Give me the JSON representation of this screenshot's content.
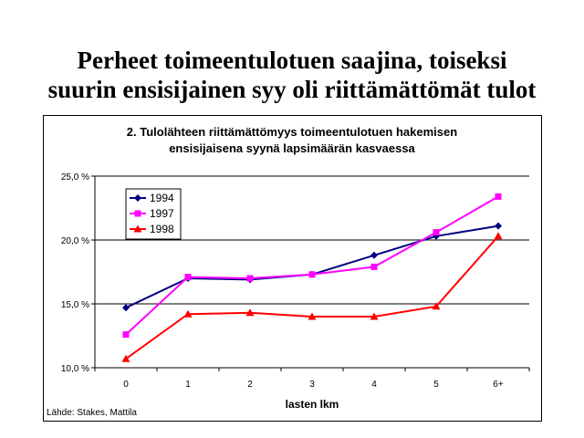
{
  "slide": {
    "title_line1": "Perheet toimeentulotuen saajina, toiseksi",
    "title_line2": "suurin ensisijainen syy oli riittämättömät tulot"
  },
  "chart_data": {
    "type": "line",
    "title_line1": "2. Tulolähteen riittämättömyys toimeentulotuen hakemisen",
    "title_line2": "ensisijaisena syynä lapsimäärän kasvaessa",
    "xlabel": "lasten lkm",
    "ylabel": "",
    "categories": [
      "0",
      "1",
      "2",
      "3",
      "4",
      "5",
      "6+"
    ],
    "ylim": [
      10,
      25
    ],
    "yticks": [
      10,
      15,
      20,
      25
    ],
    "ytick_labels": [
      "10,0 %",
      "15,0 %",
      "20,0 %",
      "25,0 %"
    ],
    "grid": "horizontal",
    "legend_position": "top-left",
    "series": [
      {
        "name": "1994",
        "color": "#000080",
        "marker": "diamond",
        "values": [
          14.7,
          17.0,
          16.9,
          17.3,
          18.8,
          20.3,
          21.1
        ]
      },
      {
        "name": "1997",
        "color": "#ff00ff",
        "marker": "square",
        "values": [
          12.6,
          17.1,
          17.0,
          17.3,
          17.9,
          20.6,
          23.4
        ]
      },
      {
        "name": "1998",
        "color": "#ff0000",
        "marker": "triangle",
        "values": [
          10.7,
          14.2,
          14.3,
          14.0,
          14.0,
          14.8,
          20.3
        ]
      }
    ],
    "source": "Lähde: Stakes, Mattila"
  }
}
